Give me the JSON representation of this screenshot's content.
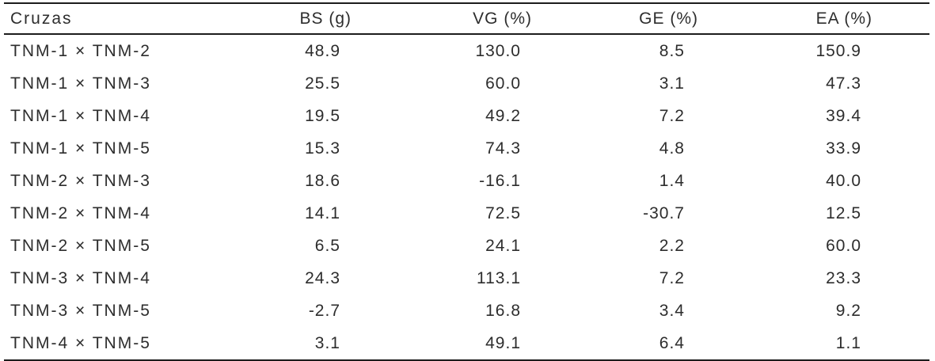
{
  "chart_data": {
    "type": "table",
    "title": "",
    "columns": [
      "Cruzas",
      "BS (g)",
      "VG (%)",
      "GE (%)",
      "EA (%)"
    ],
    "rows": [
      [
        "TNM-1 × TNM-2",
        "48.9",
        "130.0",
        "8.5",
        "150.9"
      ],
      [
        "TNM-1 × TNM-3",
        "25.5",
        "60.0",
        "3.1",
        "47.3"
      ],
      [
        "TNM-1 × TNM-4",
        "19.5",
        "49.2",
        "7.2",
        "39.4"
      ],
      [
        "TNM-1 × TNM-5",
        "15.3",
        "74.3",
        "4.8",
        "33.9"
      ],
      [
        "TNM-2 × TNM-3",
        "18.6",
        "-16.1",
        "1.4",
        "40.0"
      ],
      [
        "TNM-2 × TNM-4",
        "14.1",
        "72.5",
        "-30.7",
        "12.5"
      ],
      [
        "TNM-2 × TNM-5",
        "6.5",
        "24.1",
        "2.2",
        "60.0"
      ],
      [
        "TNM-3 × TNM-4",
        "24.3",
        "113.1",
        "7.2",
        "23.3"
      ],
      [
        "TNM-3 × TNM-5",
        "-2.7",
        "16.8",
        "3.4",
        "9.2"
      ],
      [
        "TNM-4 × TNM-5",
        "3.1",
        "49.1",
        "6.4",
        "1.1"
      ]
    ],
    "rule_color": "#1c1c1c",
    "text_color": "#2d2d2d"
  }
}
